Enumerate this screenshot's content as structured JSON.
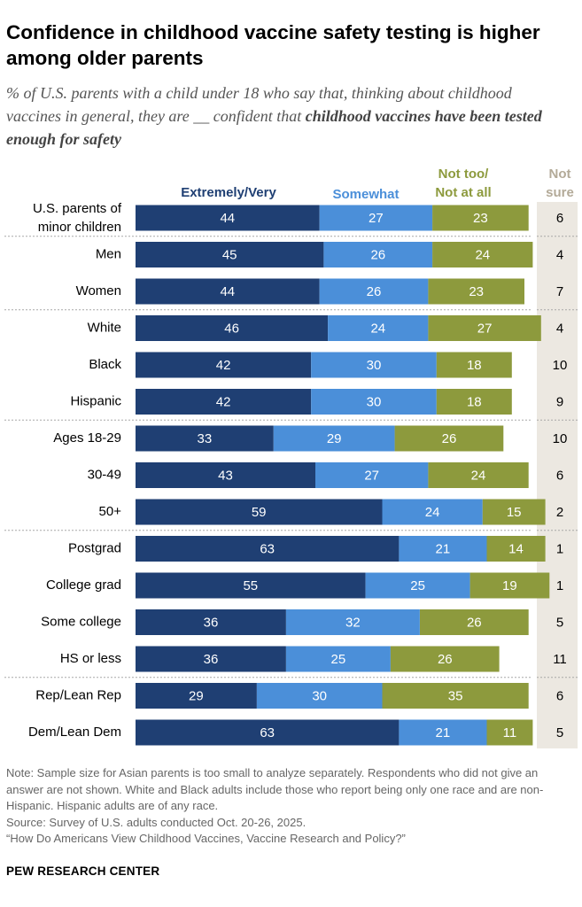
{
  "title": "Confidence in childhood vaccine safety testing is higher among older parents",
  "subtitle": {
    "plain": "% of U.S. parents with a child under 18 who say that, thinking about childhood vaccines in general, they are __ confident that ",
    "bold": "childhood vaccines have been tested enough for safety"
  },
  "colors": {
    "extremely_very": "#1f3f73",
    "somewhat": "#4b8fd9",
    "not_too_not_at_all": "#8d9a3d",
    "not_sure_bg": "#ece8e1",
    "not_sure_header": "#b3aa98"
  },
  "chart_data": {
    "type": "bar",
    "orientation": "horizontal",
    "stacked": true,
    "legend_labels": {
      "extremely_very": "Extremely/Very",
      "somewhat": "Somewhat",
      "not_too": [
        "Not too/",
        "Not at all"
      ],
      "not_sure": [
        "Not",
        "sure"
      ]
    },
    "groups": [
      {
        "rows": [
          {
            "label": [
              "U.S. parents of",
              "minor children"
            ],
            "values": [
              44,
              27,
              23
            ],
            "not_sure": 6
          }
        ]
      },
      {
        "rows": [
          {
            "label": [
              "Men"
            ],
            "values": [
              45,
              26,
              24
            ],
            "not_sure": 4
          },
          {
            "label": [
              "Women"
            ],
            "values": [
              44,
              26,
              23
            ],
            "not_sure": 7
          }
        ]
      },
      {
        "rows": [
          {
            "label": [
              "White"
            ],
            "values": [
              46,
              24,
              27
            ],
            "not_sure": 4
          },
          {
            "label": [
              "Black"
            ],
            "values": [
              42,
              30,
              18
            ],
            "not_sure": 10
          },
          {
            "label": [
              "Hispanic"
            ],
            "values": [
              42,
              30,
              18
            ],
            "not_sure": 9
          }
        ]
      },
      {
        "rows": [
          {
            "label": [
              "Ages 18-29"
            ],
            "values": [
              33,
              29,
              26
            ],
            "not_sure": 10
          },
          {
            "label": [
              "30-49"
            ],
            "values": [
              43,
              27,
              24
            ],
            "not_sure": 6
          },
          {
            "label": [
              "50+"
            ],
            "values": [
              59,
              24,
              15
            ],
            "not_sure": 2
          }
        ]
      },
      {
        "rows": [
          {
            "label": [
              "Postgrad"
            ],
            "values": [
              63,
              21,
              14
            ],
            "not_sure": 1
          },
          {
            "label": [
              "College grad"
            ],
            "values": [
              55,
              25,
              19
            ],
            "not_sure": 1
          },
          {
            "label": [
              "Some college"
            ],
            "values": [
              36,
              32,
              26
            ],
            "not_sure": 5
          },
          {
            "label": [
              "HS or less"
            ],
            "values": [
              36,
              25,
              26
            ],
            "not_sure": 11
          }
        ]
      },
      {
        "rows": [
          {
            "label": [
              "Rep/Lean Rep"
            ],
            "values": [
              29,
              30,
              35
            ],
            "not_sure": 6
          },
          {
            "label": [
              "Dem/Lean Dem"
            ],
            "values": [
              63,
              21,
              11
            ],
            "not_sure": 5
          }
        ]
      }
    ]
  },
  "notes": [
    "Note: Sample size for Asian parents is too small to analyze separately. Respondents who did not give an answer are not shown. White and Black adults include those who report being only one race and are non-Hispanic. Hispanic adults are of any race.",
    "Source: Survey of U.S. adults conducted Oct. 20-26, 2025.",
    "“How Do Americans View Childhood Vaccines, Vaccine Research and Policy?”"
  ],
  "brand": "PEW RESEARCH CENTER"
}
